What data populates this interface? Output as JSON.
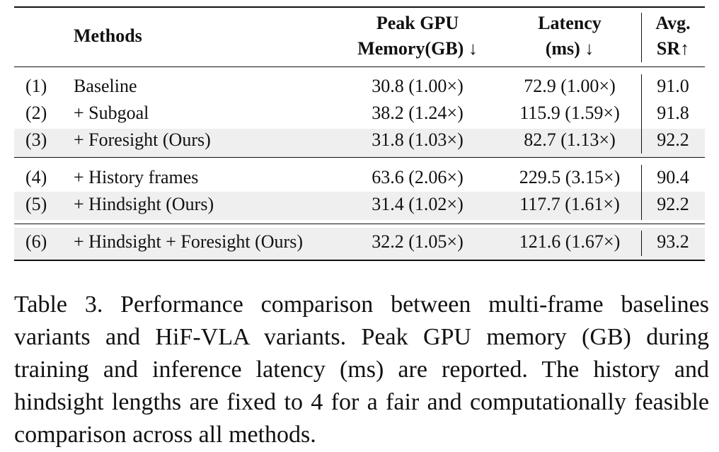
{
  "table": {
    "headers": {
      "methods": "Methods",
      "memory_line1": "Peak GPU",
      "memory_line2": "Memory(GB) ↓",
      "latency_line1": "Latency",
      "latency_line2": "(ms) ↓",
      "sr_line1": "Avg.",
      "sr_line2": "SR↑"
    },
    "rows": [
      {
        "num": "(1)",
        "method": "Baseline",
        "memory": "30.8 (1.00×)",
        "latency": "72.9 (1.00×)",
        "sr": "91.0",
        "shaded": false
      },
      {
        "num": "(2)",
        "method": "+ Subgoal",
        "memory": "38.2 (1.24×)",
        "latency": "115.9 (1.59×)",
        "sr": "91.8",
        "shaded": false
      },
      {
        "num": "(3)",
        "method": "+ Foresight (Ours)",
        "memory": "31.8 (1.03×)",
        "latency": "82.7 (1.13×)",
        "sr": "92.2",
        "shaded": true
      },
      {
        "num": "(4)",
        "method": "+ History frames",
        "memory": "63.6 (2.06×)",
        "latency": "229.5 (3.15×)",
        "sr": "90.4",
        "shaded": false
      },
      {
        "num": "(5)",
        "method": "+ Hindsight (Ours)",
        "memory": "31.4 (1.02×)",
        "latency": "117.7 (1.61×)",
        "sr": "92.2",
        "shaded": true
      },
      {
        "num": "(6)",
        "method": "+ Hindsight + Foresight (Ours)",
        "memory": "32.2 (1.05×)",
        "latency": "121.6 (1.67×)",
        "sr": "93.2",
        "shaded": true
      }
    ]
  },
  "caption": "Table 3. Performance comparison between multi-frame baselines variants and HiF-VLA variants. Peak GPU memory (GB) during training and inference latency (ms) are reported. The history and hindsight lengths are fixed to 4 for a fair and computationally feasible comparison across all methods."
}
